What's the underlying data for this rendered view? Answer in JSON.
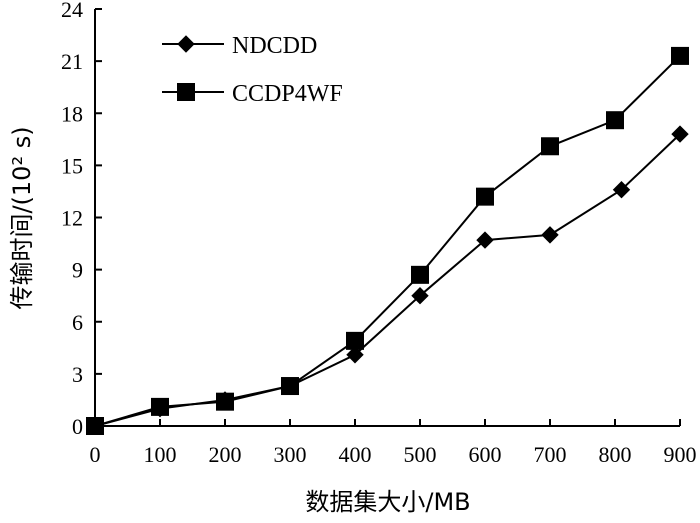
{
  "chart_data": {
    "type": "line",
    "xlabel": "数据集大小/MB",
    "ylabel": "传输时间/(10² s)",
    "x": [
      0,
      100,
      200,
      300,
      400,
      500,
      600,
      700,
      800,
      900
    ],
    "xticks": [
      "0",
      "100",
      "200",
      "300",
      "400",
      "500",
      "600",
      "700",
      "800",
      "900"
    ],
    "yticks": [
      "0",
      "3",
      "6",
      "9",
      "12",
      "15",
      "18",
      "21",
      "24"
    ],
    "xlim": [
      0,
      900
    ],
    "ylim": [
      0,
      24
    ],
    "grid": false,
    "legend_position": "top-left",
    "series": [
      {
        "name": "NDCDD",
        "marker": "diamond",
        "x": [
          0,
          100,
          200,
          300,
          400,
          500,
          600,
          700,
          810,
          900
        ],
        "values": [
          0,
          1.0,
          1.5,
          2.3,
          4.1,
          7.5,
          10.7,
          11.0,
          13.6,
          16.8
        ]
      },
      {
        "name": "CCDP4WF",
        "marker": "square",
        "x": [
          0,
          100,
          200,
          300,
          400,
          500,
          600,
          700,
          800,
          900
        ],
        "values": [
          0,
          1.1,
          1.4,
          2.3,
          4.9,
          8.7,
          13.2,
          16.1,
          17.6,
          21.3
        ]
      }
    ]
  }
}
